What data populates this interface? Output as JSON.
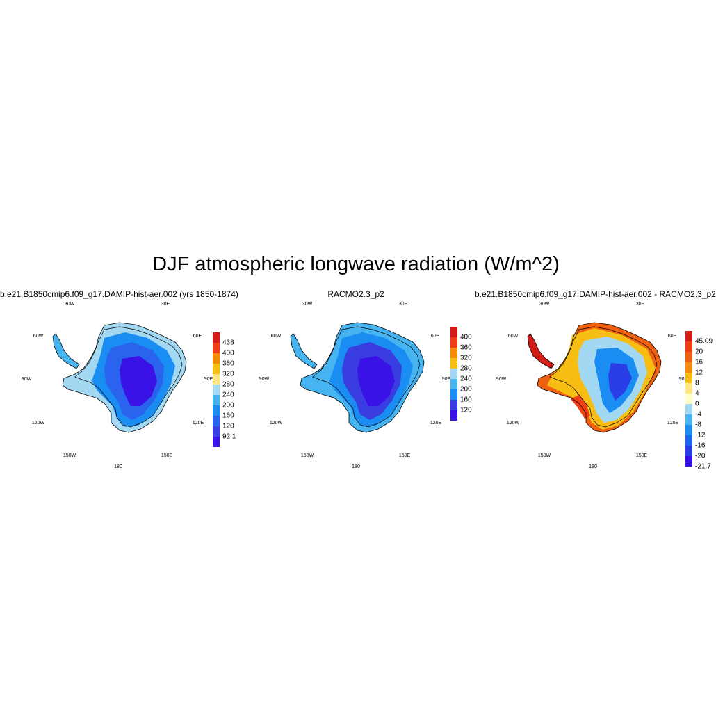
{
  "title": "DJF atmospheric longwave radiation (W/m^2)",
  "panels": [
    {
      "title": "b.e21.B1850cmip6.f09_g17.DAMIP-hist-aer.002 (yrs 1850-1874)",
      "variant": "model",
      "colorbar": {
        "colors": [
          "#3a12e8",
          "#3a3ee0",
          "#2a64ee",
          "#1a8df2",
          "#46b4f0",
          "#a2d8f2",
          "#ffe680",
          "#f8bd12",
          "#f58a0a",
          "#ef3d14",
          "#d41c18"
        ],
        "labels": [
          "438",
          "400",
          "360",
          "320",
          "280",
          "240",
          "200",
          "160",
          "120",
          "92.1"
        ]
      }
    },
    {
      "title": "RACMO2.3_p2",
      "variant": "racmo",
      "colorbar": {
        "colors": [
          "#3a12e8",
          "#3a3ee0",
          "#1a8df2",
          "#46b4f0",
          "#a2d8f2",
          "#f8bd12",
          "#f58a0a",
          "#ef3d14",
          "#d41c18"
        ],
        "labels": [
          "400",
          "360",
          "320",
          "280",
          "240",
          "200",
          "160",
          "120"
        ]
      }
    },
    {
      "title": "b.e21.B1850cmip6.f09_g17.DAMIP-hist-aer.002 - RACMO2.3_p2",
      "variant": "diff",
      "colorbar": {
        "colors": [
          "#3a12e8",
          "#2a3ee8",
          "#1a64ee",
          "#1a8df2",
          "#46b4f0",
          "#a2d8f2",
          "#ffffc8",
          "#ffe680",
          "#f8bd12",
          "#f58a0a",
          "#ef6010",
          "#ef3d14",
          "#d41c18"
        ],
        "labels": [
          "45.09",
          "20",
          "16",
          "12",
          "8",
          "4",
          "0",
          "-4",
          "-8",
          "-12",
          "-16",
          "-20",
          "-21.7"
        ]
      }
    }
  ],
  "coords": {
    "w30": "30W",
    "e30": "30E",
    "w60": "60W",
    "e60": "60E",
    "w90": "90W",
    "e90": "90E",
    "w120": "120W",
    "e120": "120E",
    "w150": "150W",
    "e150": "150E",
    "s180": "180"
  }
}
